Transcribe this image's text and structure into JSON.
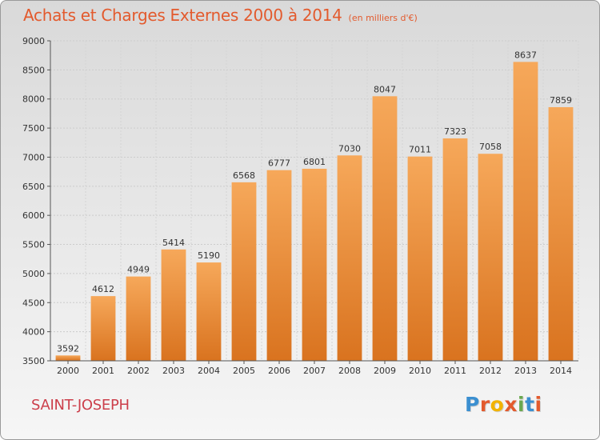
{
  "title": "Achats et Charges Externes 2000 à 2014",
  "subtitle": "(en milliers d'€)",
  "city": "SAINT-JOSEPH",
  "logo": {
    "text": "Proxiti",
    "colors": [
      "#3b8fd0",
      "#e35a2d",
      "#f2b300",
      "#e35a2d",
      "#6aa84f",
      "#3b8fd0",
      "#e35a2d"
    ]
  },
  "colors": {
    "bar_top": "#f6a85a",
    "bar_bottom": "#d9731f",
    "title": "#e35a2d",
    "city": "#cc3f4b"
  },
  "chart_data": {
    "type": "bar",
    "title": "Achats et Charges Externes 2000 à 2014",
    "subtitle": "(en milliers d'€)",
    "categories": [
      "2000",
      "2001",
      "2002",
      "2003",
      "2004",
      "2005",
      "2006",
      "2007",
      "2008",
      "2009",
      "2010",
      "2011",
      "2012",
      "2013",
      "2014"
    ],
    "values": [
      3592,
      4612,
      4949,
      5414,
      5190,
      6568,
      6777,
      6801,
      7030,
      8047,
      7011,
      7323,
      7058,
      8637,
      7859
    ],
    "ylim": [
      3500,
      9000
    ],
    "yticks": [
      3500,
      4000,
      4500,
      5000,
      5500,
      6000,
      6500,
      7000,
      7500,
      8000,
      8500,
      9000
    ],
    "grid": true,
    "data_labels": true
  }
}
